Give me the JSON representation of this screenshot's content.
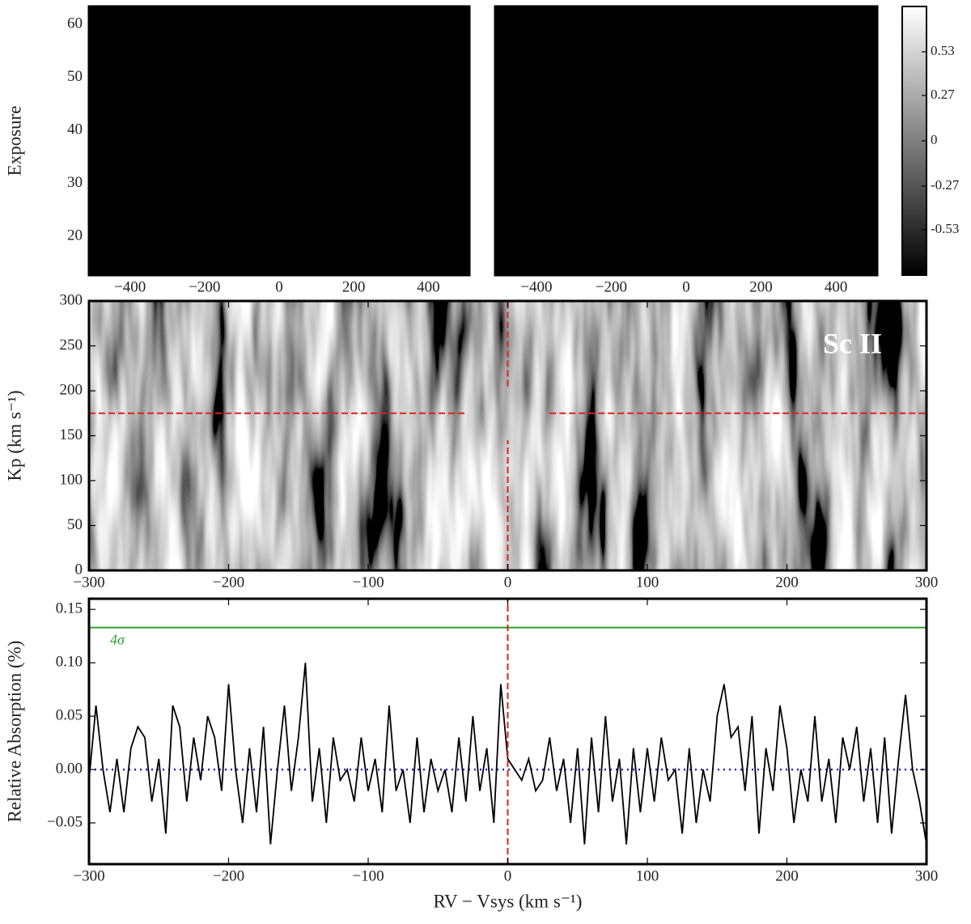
{
  "chart_data": [
    {
      "type": "heatmap",
      "ylabel": "Exposure",
      "xlim": [
        -510,
        510
      ],
      "ylim": [
        12.7,
        63.4
      ],
      "xticks": [
        {
          "value": -400,
          "label": "−400"
        },
        {
          "value": -200,
          "label": "−200"
        },
        0,
        200,
        400
      ],
      "yticks": [
        20,
        30,
        40,
        50,
        60
      ],
      "texture": "noise"
    },
    {
      "type": "heatmap",
      "xlim": [
        -510,
        510
      ],
      "ylim": [
        12.7,
        63.4
      ],
      "xticks": [
        {
          "value": -400,
          "label": "−400"
        },
        {
          "value": -200,
          "label": "−200"
        },
        0,
        200,
        400
      ],
      "texture": "noise",
      "colorbar": {
        "lim": [
          -0.8,
          0.8
        ],
        "ticks": [
          -0.53,
          -0.27,
          0,
          0.27,
          0.53
        ]
      }
    },
    {
      "type": "heatmap",
      "ylabel": "Kp (km s⁻¹)",
      "annotation": "Sc II",
      "xlim": [
        -300,
        300
      ],
      "ylim": [
        0,
        300
      ],
      "xticks": [
        {
          "value": -300,
          "label": "−300"
        },
        {
          "value": -200,
          "label": "−200"
        },
        {
          "value": -100,
          "label": "−100"
        },
        0,
        100,
        200,
        300
      ],
      "yticks": [
        0,
        50,
        100,
        150,
        200,
        250,
        300
      ],
      "texture": "streaks",
      "rv_marker": 0,
      "kp_marker": 175,
      "marker_color": "#e0201b",
      "marker_gap": {
        "x": [
          -30,
          30
        ],
        "y": [
          145,
          205
        ]
      }
    },
    {
      "type": "line",
      "ylabel": "Relative Absorption (%)",
      "xlabel": "RV − Vsys (km s⁻¹)",
      "xlim": [
        -300,
        300
      ],
      "ylim": [
        -0.0886,
        0.16
      ],
      "xticks": [
        {
          "value": -300,
          "label": "−300"
        },
        {
          "value": -200,
          "label": "−200"
        },
        {
          "value": -100,
          "label": "−100"
        },
        0,
        100,
        200,
        300
      ],
      "yticks": [
        {
          "value": -0.05,
          "label": "−0.05"
        },
        {
          "value": 0,
          "label": "0.00"
        },
        {
          "value": 0.05,
          "label": "0.05"
        },
        {
          "value": 0.1,
          "label": "0.10"
        },
        {
          "value": 0.15,
          "label": "0.15"
        }
      ],
      "color": "#000000",
      "x": [
        -300,
        -295,
        -290,
        -285,
        -280,
        -275,
        -270,
        -265,
        -260,
        -255,
        -250,
        -245,
        -240,
        -235,
        -230,
        -225,
        -220,
        -215,
        -210,
        -205,
        -200,
        -195,
        -190,
        -185,
        -180,
        -175,
        -170,
        -165,
        -160,
        -155,
        -150,
        -145,
        -140,
        -135,
        -130,
        -125,
        -120,
        -115,
        -110,
        -105,
        -100,
        -95,
        -90,
        -85,
        -80,
        -75,
        -70,
        -65,
        -60,
        -55,
        -50,
        -45,
        -40,
        -35,
        -30,
        -25,
        -20,
        -15,
        -10,
        -5,
        0,
        5,
        10,
        15,
        20,
        25,
        30,
        35,
        40,
        45,
        50,
        55,
        60,
        65,
        70,
        75,
        80,
        85,
        90,
        95,
        100,
        105,
        110,
        115,
        120,
        125,
        130,
        135,
        140,
        145,
        150,
        155,
        160,
        165,
        170,
        175,
        180,
        185,
        190,
        195,
        200,
        205,
        210,
        215,
        220,
        225,
        230,
        235,
        240,
        245,
        250,
        255,
        260,
        265,
        270,
        275,
        280,
        285,
        290,
        295,
        300
      ],
      "values": [
        -0.01,
        0.06,
        0.0,
        -0.04,
        0.01,
        -0.04,
        0.02,
        0.04,
        0.03,
        -0.03,
        0.01,
        -0.06,
        0.06,
        0.04,
        -0.03,
        0.03,
        -0.01,
        0.05,
        0.03,
        -0.02,
        0.08,
        0.0,
        -0.05,
        0.02,
        -0.04,
        0.04,
        -0.07,
        0.0,
        0.06,
        -0.02,
        0.03,
        0.1,
        -0.03,
        0.02,
        -0.05,
        0.03,
        -0.01,
        0.0,
        -0.03,
        0.03,
        -0.02,
        0.01,
        -0.04,
        0.06,
        -0.02,
        0.0,
        -0.05,
        0.03,
        -0.04,
        0.01,
        -0.02,
        0.0,
        -0.04,
        0.03,
        -0.03,
        0.05,
        -0.02,
        0.02,
        -0.05,
        0.08,
        0.01,
        0.0,
        -0.01,
        0.01,
        -0.02,
        -0.01,
        0.03,
        -0.02,
        0.01,
        -0.05,
        0.02,
        -0.07,
        0.03,
        -0.04,
        0.05,
        -0.03,
        0.01,
        -0.07,
        0.02,
        -0.04,
        0.02,
        -0.03,
        0.03,
        -0.01,
        0.0,
        -0.06,
        0.02,
        -0.05,
        0.0,
        -0.03,
        0.05,
        0.08,
        0.03,
        0.04,
        -0.02,
        0.05,
        -0.06,
        0.02,
        -0.02,
        0.06,
        0.02,
        -0.05,
        0.0,
        -0.03,
        0.05,
        -0.03,
        0.01,
        -0.05,
        0.03,
        0.0,
        0.04,
        -0.03,
        0.02,
        -0.05,
        0.03,
        -0.06,
        0.01,
        0.07,
        0.0,
        -0.03,
        -0.07
      ],
      "threshold": 0.133,
      "threshold_label": "4σ",
      "threshold_color": "#2ca02c",
      "reference_line": 0,
      "reference_color": "#1f1fd6",
      "rv_marker": 0,
      "marker_color": "#e0201b"
    }
  ]
}
